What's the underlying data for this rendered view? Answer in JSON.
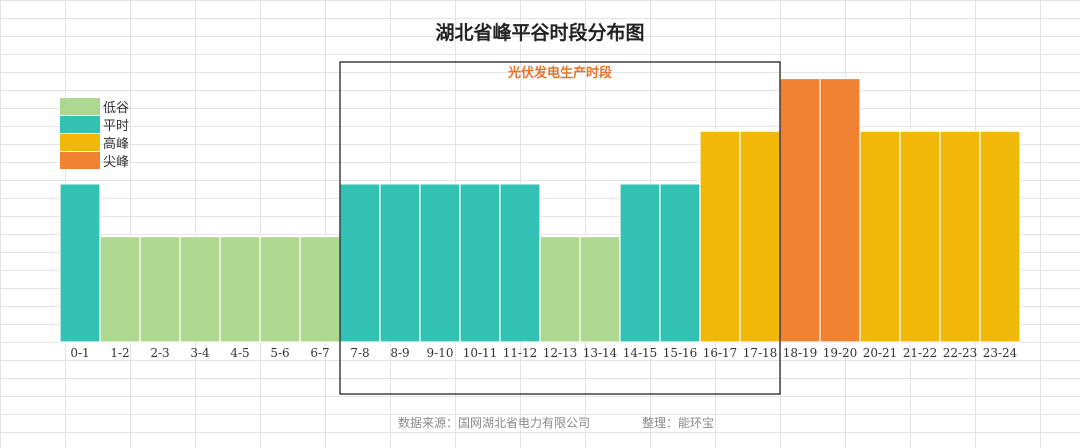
{
  "chart_data": {
    "type": "bar",
    "title": "湖北省峰平谷时段分布图",
    "categories": [
      "0-1",
      "1-2",
      "2-3",
      "3-4",
      "4-5",
      "5-6",
      "6-7",
      "7-8",
      "8-9",
      "9-10",
      "10-11",
      "11-12",
      "12-13",
      "13-14",
      "14-15",
      "15-16",
      "16-17",
      "17-18",
      "18-19",
      "19-20",
      "20-21",
      "21-22",
      "22-23",
      "23-24"
    ],
    "values": [
      3,
      2,
      2,
      2,
      2,
      2,
      2,
      3,
      3,
      3,
      3,
      3,
      2,
      2,
      3,
      3,
      4,
      4,
      5,
      5,
      4,
      4,
      4,
      4
    ],
    "levels": [
      "低谷",
      "平时",
      "高峰",
      "尖峰"
    ],
    "legend": [
      {
        "label": "低谷",
        "color": "#aed88f"
      },
      {
        "label": "平时",
        "color": "#32c2b4"
      },
      {
        "label": "高峰",
        "color": "#f2b807"
      },
      {
        "label": "尖峰",
        "color": "#f08232"
      }
    ],
    "level_colors": {
      "2": "#aed88f",
      "3": "#32c2b4",
      "4": "#f2b807",
      "5": "#f08232"
    },
    "annotation": {
      "label": "光伏发电生产时段",
      "start": "7-8",
      "end": "17-18",
      "color": "#e8742a"
    },
    "ylim": [
      0,
      5
    ],
    "xlabel": "",
    "ylabel": "",
    "legend_position": "top-left",
    "grid": false
  },
  "source_label": "数据来源：国网湖北省电力有限公司",
  "author_label": "整理：能环宝"
}
